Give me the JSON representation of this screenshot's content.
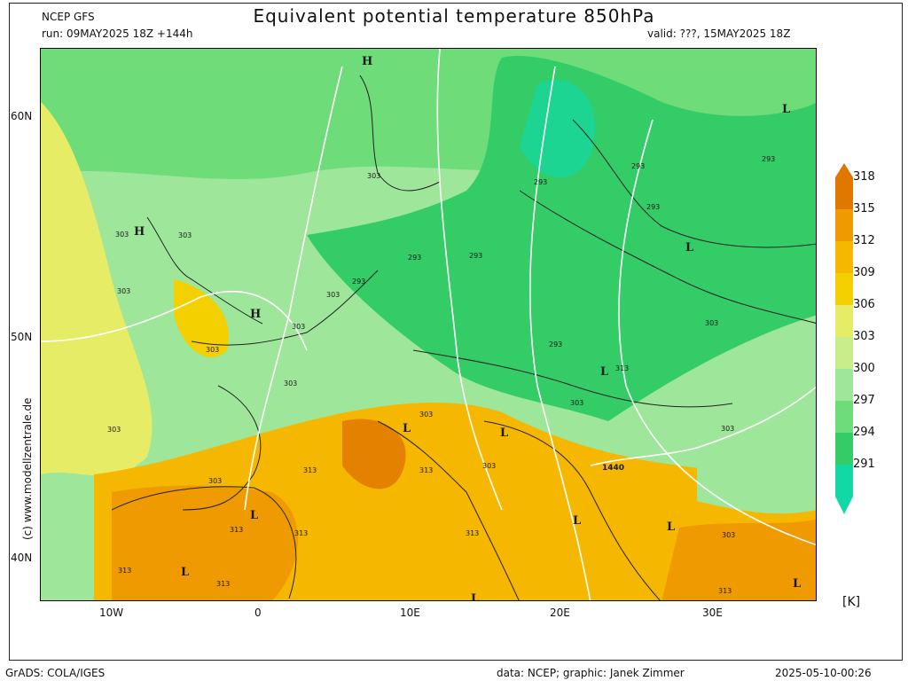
{
  "header": {
    "title": "Equivalent potential temperature 850hPa",
    "model": "NCEP GFS",
    "run": "run: 09MAY2025 18Z +144h",
    "valid": "valid: ???, 15MAY2025 18Z"
  },
  "axes": {
    "lat_labels": [
      "60N",
      "50N",
      "40N"
    ],
    "lon_labels": [
      "10W",
      "0",
      "10E",
      "20E",
      "30E"
    ]
  },
  "legend": {
    "unit": "[K]",
    "values": [
      "318",
      "315",
      "312",
      "309",
      "306",
      "303",
      "300",
      "297",
      "294",
      "291"
    ],
    "colors": [
      "#e07800",
      "#ef9a00",
      "#f5b700",
      "#f5d000",
      "#e6ec66",
      "#c8ee8c",
      "#9ee69a",
      "#6fdc7a",
      "#33cc66",
      "#12d8a5"
    ]
  },
  "map": {
    "pressure_labels": [
      "H",
      "H",
      "H",
      "L",
      "L",
      "L",
      "L",
      "L",
      "L",
      "L",
      "L",
      "L",
      "L",
      "L"
    ],
    "contour_labels": [
      "303",
      "303",
      "303",
      "303",
      "303",
      "303",
      "303",
      "303",
      "303",
      "303",
      "303",
      "303",
      "303",
      "303",
      "303",
      "303",
      "293",
      "293",
      "293",
      "293",
      "293",
      "293",
      "293",
      "293",
      "313",
      "313",
      "313",
      "313",
      "313",
      "313",
      "313",
      "313",
      "313",
      "1440"
    ]
  },
  "footer": {
    "left": "GrADS: COLA/IGES",
    "credit": "data: NCEP; graphic: Janek Zimmer",
    "timestamp": "2025-05-10-00:26",
    "site": "(c) www.modellzentrale.de"
  }
}
